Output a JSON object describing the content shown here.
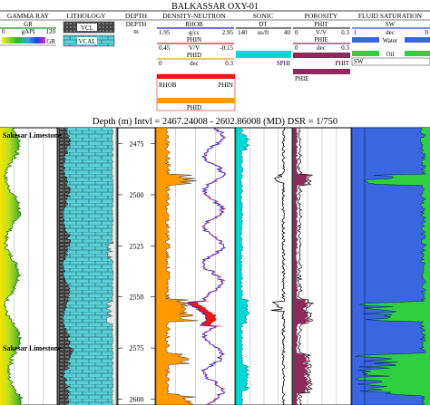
{
  "chart_data": {
    "type": "line",
    "title": "BALKASSAR OXY-01",
    "subtitle": "Depth (m)  Intvl = 2467.24008 - 2602.86008 (MD) DSR = 1/750",
    "depth_range": [
      2467.24008,
      2602.86008
    ],
    "depth_ticks": [
      2475,
      2500,
      2525,
      2550,
      2575,
      2600
    ],
    "formation_label": "Sakesar Limestone",
    "tracks": [
      {
        "id": "gamma-ray",
        "header": "GAMMA RAY",
        "curves": [
          {
            "name": "GR",
            "unit": "gAPI",
            "min": "0",
            "max": "120",
            "color": "#2e8b2e"
          }
        ],
        "legend_bar_label": "GR"
      },
      {
        "id": "lithology",
        "header": "LITHOLOGY",
        "curves": [
          {
            "name": "VCL",
            "color": "#555555"
          },
          {
            "name": "VCAL",
            "color": "#4ecfcf"
          }
        ]
      },
      {
        "id": "depth",
        "header": "DEPTH",
        "curves": [
          {
            "name": "DEPTH",
            "unit": "m"
          }
        ]
      },
      {
        "id": "density-neutron",
        "header": "DENSITY-NEUTRON",
        "curves": [
          {
            "name": "RHOB",
            "unit": "g/cc",
            "min": "1.95",
            "max": "2.95",
            "color": "#1a1ae6"
          },
          {
            "name": "PHIN",
            "unit": "V/V",
            "min": "0.45",
            "max": "-0.15",
            "color": "#e02020"
          },
          {
            "name": "PHID",
            "unit": "dec",
            "min": "0",
            "max": "0.3",
            "color": "#e0a030"
          }
        ],
        "fill_labels": {
          "left": "RHOB",
          "right": "PHIN",
          "phid": "PHID"
        }
      },
      {
        "id": "sonic",
        "header": "SONIC",
        "curves": [
          {
            "name": "DT",
            "unit": "us/ft",
            "min": "140",
            "max": "40",
            "color": "#000000"
          },
          {
            "name": "SPHI",
            "unit": "",
            "min": "",
            "max": "",
            "color": "#00c8c8"
          }
        ]
      },
      {
        "id": "porosity",
        "header": "POROSITY",
        "curves": [
          {
            "name": "PHIT",
            "unit": "V/V",
            "min": "0",
            "max": "0.3",
            "color": "#000000"
          },
          {
            "name": "PHIE",
            "unit": "dec",
            "min": "0",
            "max": "0.3",
            "color": "#8b2a5c"
          }
        ],
        "fill_labels": {
          "phit": "PHIT",
          "phie": "PHIE"
        }
      },
      {
        "id": "fluid-saturation",
        "header": "FLUID SATURATION",
        "curves": [
          {
            "name": "SW",
            "unit": "dec",
            "min": "1",
            "max": "0",
            "color": "#2a50d8"
          }
        ],
        "fill_labels": {
          "water": "Water",
          "oil": "Oil",
          "sw": "SW"
        }
      }
    ],
    "colors": {
      "gr_fill": "#a8d820",
      "water": "#3a66e0",
      "oil": "#2fd040",
      "sonic_fill": "#00d8d8",
      "phie_fill": "#8b2a5c",
      "phid_fill": "#ff9a00",
      "phin_fill": "#e81818",
      "lith_fill": "#5ad0d8"
    },
    "depth_axis_direction": "down",
    "grid": true
  }
}
